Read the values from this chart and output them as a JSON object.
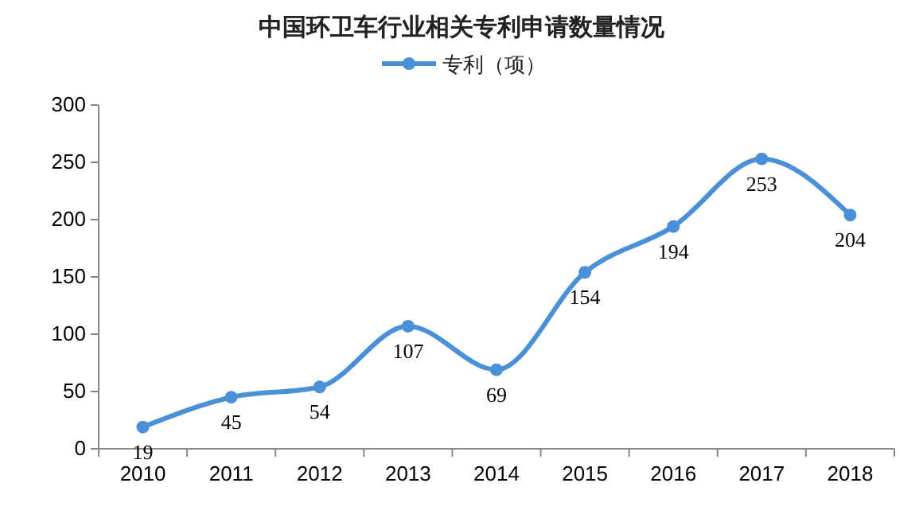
{
  "chart_data": {
    "type": "line",
    "title": "中国环卫车行业相关专利申请数量情况",
    "categories": [
      "2010",
      "2011",
      "2012",
      "2013",
      "2014",
      "2015",
      "2016",
      "2017",
      "2018"
    ],
    "series": [
      {
        "name": "专利（项）",
        "color": "#4a90d9",
        "values": [
          19,
          45,
          54,
          107,
          69,
          154,
          194,
          253,
          204
        ]
      }
    ],
    "ylim": [
      0,
      300
    ],
    "yticks": [
      0,
      50,
      100,
      150,
      200,
      250,
      300
    ],
    "grid": false,
    "legend": "top",
    "marker": "circle",
    "line_style": "solid",
    "data_labels": true
  }
}
